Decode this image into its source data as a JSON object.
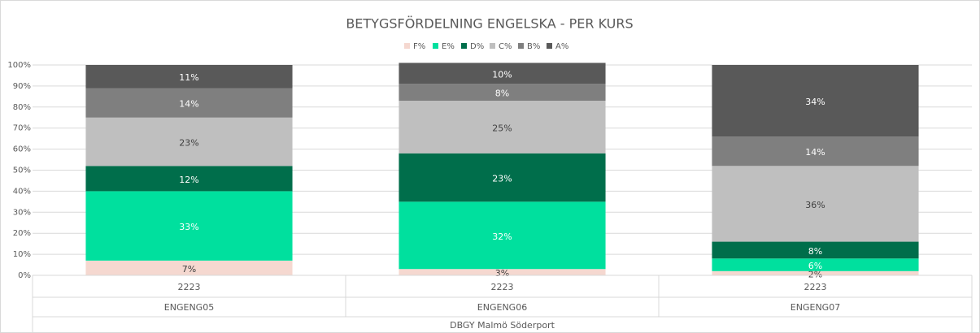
{
  "chart_data": {
    "type": "stacked_bar",
    "title": "BETYGSFÖRDELNING ENGELSKA - PER KURS",
    "categories": [
      "ENGENG05",
      "ENGENG06",
      "ENGENG07"
    ],
    "category_periods": [
      "2223",
      "2223",
      "2223"
    ],
    "category_group": "DBGY Malmö Söderport",
    "series": [
      {
        "name": "F%",
        "color": "#f5d8d0",
        "values": [
          7,
          3,
          2
        ],
        "value_labels": [
          "7%",
          "3%",
          "2%"
        ]
      },
      {
        "name": "E%",
        "color": "#00e09e",
        "values": [
          33,
          32,
          6
        ],
        "value_labels": [
          "33%",
          "32%",
          "6%"
        ]
      },
      {
        "name": "D%",
        "color": "#006e4b",
        "values": [
          12,
          23,
          8
        ],
        "value_labels": [
          "12%",
          "23%",
          "8%"
        ]
      },
      {
        "name": "C%",
        "color": "#bfbfbf",
        "values": [
          23,
          25,
          36
        ],
        "value_labels": [
          "23%",
          "25%",
          "36%"
        ]
      },
      {
        "name": "B%",
        "color": "#7f7f7f",
        "values": [
          14,
          8,
          14
        ],
        "value_labels": [
          "14%",
          "8%",
          "14%"
        ]
      },
      {
        "name": "A%",
        "color": "#595959",
        "values": [
          11,
          10,
          34
        ],
        "value_labels": [
          "11%",
          "10%",
          "34%"
        ]
      }
    ],
    "ylim": [
      0,
      100
    ],
    "yticks": [
      {
        "value": 0,
        "label": "0%"
      },
      {
        "value": 10,
        "label": "10%"
      },
      {
        "value": 20,
        "label": "20%"
      },
      {
        "value": 30,
        "label": "30%"
      },
      {
        "value": 40,
        "label": "40%"
      },
      {
        "value": 50,
        "label": "50%"
      },
      {
        "value": 60,
        "label": "60%"
      },
      {
        "value": 70,
        "label": "70%"
      },
      {
        "value": 80,
        "label": "80%"
      },
      {
        "value": 90,
        "label": "90%"
      },
      {
        "value": 100,
        "label": "100%"
      }
    ],
    "grid": true,
    "legend": "top"
  }
}
